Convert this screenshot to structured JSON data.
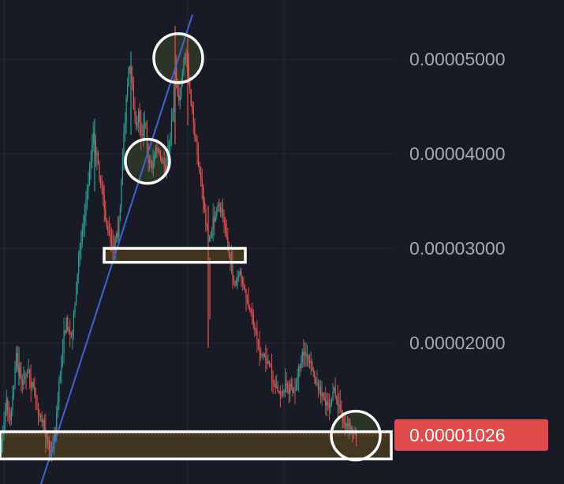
{
  "chart_data": {
    "type": "candlestick",
    "ylim": [
      3e-06,
      5.47e-05
    ],
    "y_ticks": [
      {
        "value": 5e-05,
        "label": "0.00005000"
      },
      {
        "value": 4e-05,
        "label": "0.00004000"
      },
      {
        "value": 3e-05,
        "label": "0.00003000"
      },
      {
        "value": 2e-05,
        "label": "0.00002000"
      }
    ],
    "current_price": {
      "value": 1.026e-05,
      "label": "0.00001026"
    },
    "grid": true,
    "colors": {
      "background": "#181a25",
      "grid": "#262a36",
      "up": "#26a69a",
      "down": "#ef5350",
      "trendline": "#3d64e0",
      "zone_fill": "#46381f",
      "highlight_fill": "#2e3a28",
      "current_price_badge": "#e04a4b",
      "annotation_stroke": "#ffffff"
    },
    "price_path": [
      [
        0,
        8.5e-06
      ],
      [
        8,
        1.35e-05
      ],
      [
        14,
        1.22e-05
      ],
      [
        20,
        1.85e-05
      ],
      [
        28,
        1.55e-05
      ],
      [
        34,
        1.72e-05
      ],
      [
        42,
        1.52e-05
      ],
      [
        50,
        1.25e-05
      ],
      [
        58,
        1.05e-05
      ],
      [
        64,
        8e-06
      ],
      [
        70,
        1.05e-05
      ],
      [
        78,
        1.85e-05
      ],
      [
        84,
        2.25e-05
      ],
      [
        90,
        2.05e-05
      ],
      [
        96,
        2.45e-05
      ],
      [
        100,
        2.95e-05
      ],
      [
        106,
        3.3e-05
      ],
      [
        112,
        3.7e-05
      ],
      [
        118,
        4.2e-05
      ],
      [
        124,
        3.9e-05
      ],
      [
        130,
        3.55e-05
      ],
      [
        136,
        3.2e-05
      ],
      [
        142,
        2.98e-05
      ],
      [
        148,
        3.1e-05
      ],
      [
        152,
        3.35e-05
      ],
      [
        156,
        4.1e-05
      ],
      [
        160,
        4.55e-05
      ],
      [
        164,
        4.95e-05
      ],
      [
        168,
        4.65e-05
      ],
      [
        172,
        4.25e-05
      ],
      [
        176,
        4.45e-05
      ],
      [
        180,
        4.15e-05
      ],
      [
        184,
        4.35e-05
      ],
      [
        188,
        3.95e-05
      ],
      [
        192,
        3.85e-05
      ],
      [
        198,
        4.05e-05
      ],
      [
        204,
        3.95e-05
      ],
      [
        210,
        3.85e-05
      ],
      [
        214,
        4.05e-05
      ],
      [
        218,
        4.35e-05
      ],
      [
        222,
        4.9e-05
      ],
      [
        226,
        4.55e-05
      ],
      [
        230,
        4.75e-05
      ],
      [
        234,
        5.05e-05
      ],
      [
        238,
        4.95e-05
      ],
      [
        242,
        4.55e-05
      ],
      [
        248,
        4.1e-05
      ],
      [
        254,
        3.75e-05
      ],
      [
        258,
        3.5e-05
      ],
      [
        264,
        3.05e-05
      ],
      [
        270,
        3.25e-05
      ],
      [
        276,
        3.45e-05
      ],
      [
        282,
        3.4e-05
      ],
      [
        288,
        3.1e-05
      ],
      [
        292,
        2.85e-05
      ],
      [
        298,
        2.6e-05
      ],
      [
        304,
        2.75e-05
      ],
      [
        310,
        2.55e-05
      ],
      [
        316,
        2.35e-05
      ],
      [
        322,
        2.2e-05
      ],
      [
        330,
        1.9e-05
      ],
      [
        336,
        1.85e-05
      ],
      [
        342,
        1.75e-05
      ],
      [
        348,
        1.55e-05
      ],
      [
        356,
        1.45e-05
      ],
      [
        364,
        1.52e-05
      ],
      [
        372,
        1.48e-05
      ],
      [
        378,
        1.65e-05
      ],
      [
        384,
        1.92e-05
      ],
      [
        390,
        1.82e-05
      ],
      [
        396,
        1.72e-05
      ],
      [
        402,
        1.55e-05
      ],
      [
        410,
        1.42e-05
      ],
      [
        418,
        1.35e-05
      ],
      [
        424,
        1.5e-05
      ],
      [
        428,
        1.35e-05
      ],
      [
        434,
        1.18e-05
      ],
      [
        440,
        1.12e-05
      ],
      [
        446,
        1.08e-05
      ],
      [
        452,
        1.02e-05
      ]
    ],
    "trendline": {
      "from": [
        44,
        3e-06
      ],
      "to": [
        244,
        5.47e-05
      ]
    },
    "zones": [
      {
        "name": "mid-zone",
        "x_from": 132,
        "x_to": 311,
        "y_from": 3e-05,
        "y_to": 2.852e-05
      },
      {
        "name": "bottom-zone",
        "x_from": 0,
        "x_to": 496,
        "y_from": 1.061e-05,
        "y_to": 7.73e-06
      }
    ],
    "highlights": [
      {
        "name": "top-circle",
        "cx": 226,
        "cy": 5.01e-05,
        "r": 31
      },
      {
        "name": "middle-circle",
        "cx": 187,
        "cy": 3.92e-05,
        "r": 28
      },
      {
        "name": "bottom-circle",
        "cx": 451,
        "cy": 1.02e-05,
        "r": 31
      }
    ]
  }
}
